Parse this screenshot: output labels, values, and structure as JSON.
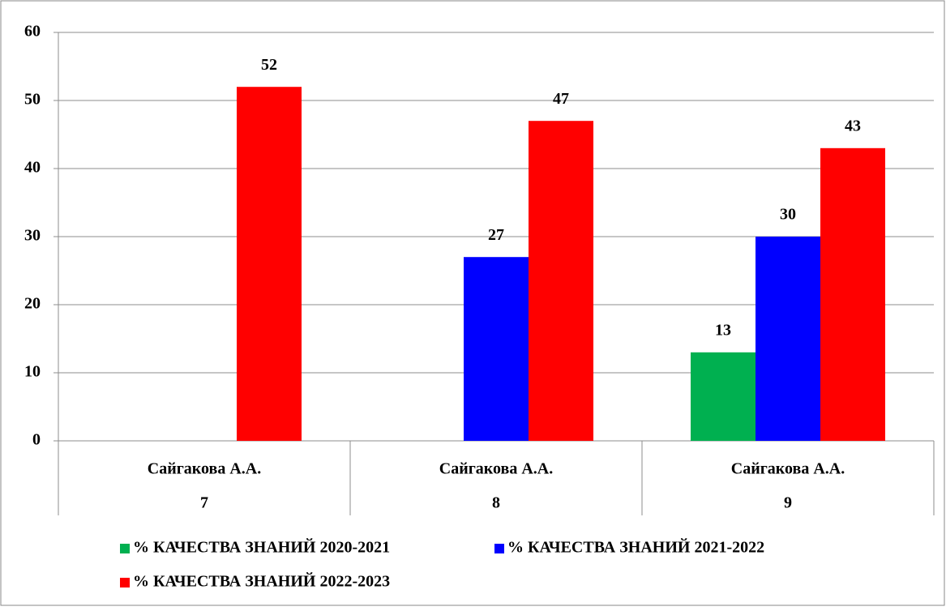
{
  "chart_data": {
    "type": "bar",
    "categories": [
      [
        "Сайгакова А.А.",
        "7"
      ],
      [
        "Сайгакова А.А.",
        "8"
      ],
      [
        "Сайгакова А.А.",
        "9"
      ]
    ],
    "series": [
      {
        "name": "% КАЧЕСТВА ЗНАНИЙ 2020-2021",
        "color": "#00b050",
        "values": [
          null,
          null,
          13
        ]
      },
      {
        "name": "% КАЧЕСТВА ЗНАНИЙ 2021-2022",
        "color": "#0000ff",
        "values": [
          null,
          27,
          30
        ]
      },
      {
        "name": "% КАЧЕСТВА ЗНАНИЙ 2022-2023",
        "color": "#ff0000",
        "values": [
          52,
          47,
          43
        ]
      }
    ],
    "ylim": [
      0,
      60
    ],
    "yticks": [
      0,
      10,
      20,
      30,
      40,
      50,
      60
    ],
    "grid": true,
    "legend": "bottom"
  }
}
